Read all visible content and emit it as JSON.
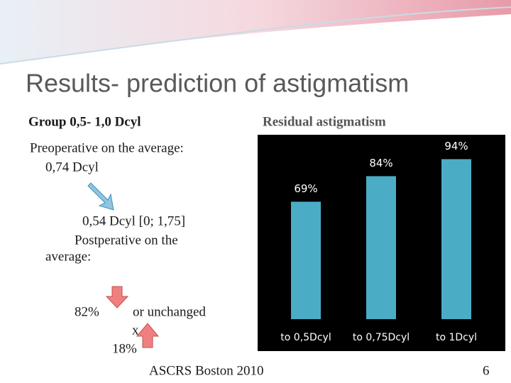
{
  "title": "Results- prediction of astigmatism",
  "subtitle": "Group 0,5- 1,0 Dcyl",
  "body": {
    "preop": "Preoperative on the average:",
    "preop_value": "0,74 Dcyl",
    "postop_value": "0,54 Dcyl [0; 1,75]",
    "postop_line1": "Postperative on the",
    "postop_line2": "average:",
    "decreased": "82%",
    "unchanged": "or unchanged",
    "x": "x",
    "increased": "18%"
  },
  "footer": {
    "text": "ASCRS Boston 2010",
    "page": "6"
  },
  "chart_data": {
    "type": "bar",
    "title": "Residual astigmatism",
    "categories": [
      "to 0,5Dcyl",
      "to 0,75Dcyl",
      "to 1Dcyl"
    ],
    "values": [
      69,
      84,
      94
    ],
    "value_labels": [
      "69%",
      "84%",
      "94%"
    ],
    "color": "#4bacc6",
    "background": "#000000"
  }
}
